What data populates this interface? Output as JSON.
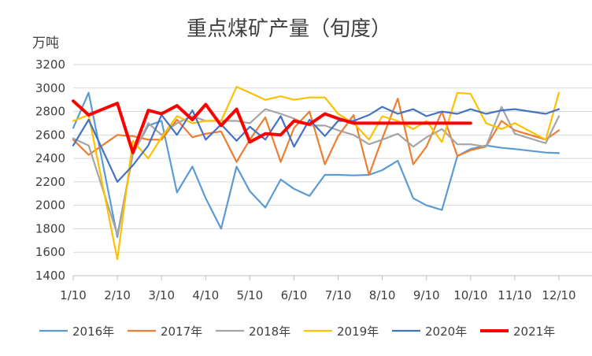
{
  "chart_data": {
    "type": "line",
    "title": "重点煤矿产量（旬度）",
    "ylabel": "万吨",
    "xlabel": "",
    "ylim": [
      1400,
      3200
    ],
    "yticks": [
      1400,
      1600,
      1800,
      2000,
      2200,
      2400,
      2600,
      2800,
      3000,
      3200
    ],
    "x_tick_labels": [
      "1/10",
      "2/10",
      "3/10",
      "4/10",
      "5/10",
      "6/10",
      "7/10",
      "8/10",
      "9/10",
      "10/10",
      "11/10",
      "12/10"
    ],
    "grid": "horizontal",
    "legend_position": "bottom",
    "x_unit": "month index (1 = 1/10)",
    "series": [
      {
        "name": "2016年",
        "color": "#5B9BD5",
        "x": [
          1.0,
          1.35,
          2.0,
          2.35,
          2.7,
          3.0,
          3.35,
          3.7,
          4.0,
          4.35,
          4.7,
          5.0,
          5.35,
          5.7,
          6.0,
          6.35,
          6.7,
          7.0,
          7.35,
          7.7,
          8.0,
          8.35,
          8.7,
          9.0,
          9.35,
          9.7,
          10.0,
          10.35,
          10.7,
          11.0,
          11.7,
          12.0
        ],
        "y": [
          2660,
          2960,
          1730,
          2440,
          2680,
          2720,
          2110,
          2330,
          2060,
          1800,
          2330,
          2120,
          1980,
          2220,
          2140,
          2080,
          2260,
          2260,
          2255,
          2260,
          2300,
          2380,
          2060,
          2000,
          1960,
          2420,
          2480,
          2510,
          2490,
          2480,
          2450,
          2445
        ]
      },
      {
        "name": "2017年",
        "color": "#ED7D31",
        "x": [
          1.0,
          1.35,
          2.0,
          2.35,
          2.7,
          3.0,
          3.35,
          3.7,
          4.0,
          4.35,
          4.7,
          5.0,
          5.35,
          5.7,
          6.0,
          6.35,
          6.7,
          7.0,
          7.35,
          7.7,
          8.0,
          8.35,
          8.7,
          9.0,
          9.35,
          9.7,
          10.0,
          10.35,
          10.7,
          11.0,
          11.7,
          12.0
        ],
        "y": [
          2560,
          2430,
          2600,
          2590,
          2560,
          2560,
          2730,
          2580,
          2610,
          2630,
          2370,
          2560,
          2750,
          2370,
          2660,
          2800,
          2350,
          2590,
          2770,
          2260,
          2570,
          2910,
          2350,
          2500,
          2800,
          2420,
          2470,
          2500,
          2720,
          2640,
          2560,
          2640
        ]
      },
      {
        "name": "2018年",
        "color": "#A5A5A5",
        "x": [
          1.0,
          1.35,
          2.0,
          2.35,
          2.7,
          3.0,
          3.35,
          3.7,
          4.0,
          4.35,
          4.7,
          5.0,
          5.35,
          5.7,
          6.0,
          6.35,
          6.7,
          7.0,
          7.35,
          7.7,
          8.0,
          8.35,
          8.7,
          9.0,
          9.35,
          9.7,
          10.0,
          10.35,
          10.7,
          11.0,
          11.7,
          12.0
        ],
        "y": [
          2570,
          2510,
          1750,
          2430,
          2700,
          2600,
          2700,
          2760,
          2720,
          2720,
          2720,
          2700,
          2820,
          2780,
          2740,
          2680,
          2680,
          2640,
          2600,
          2520,
          2560,
          2610,
          2500,
          2580,
          2650,
          2520,
          2520,
          2500,
          2840,
          2610,
          2530,
          2760
        ]
      },
      {
        "name": "2019年",
        "color": "#FFC000",
        "x": [
          1.0,
          1.35,
          2.0,
          2.35,
          2.7,
          3.0,
          3.35,
          3.7,
          4.0,
          4.35,
          4.7,
          5.0,
          5.35,
          5.7,
          6.0,
          6.35,
          6.7,
          7.0,
          7.35,
          7.7,
          8.0,
          8.35,
          8.7,
          9.0,
          9.35,
          9.7,
          10.0,
          10.35,
          10.7,
          11.0,
          11.7,
          12.0
        ],
        "y": [
          2720,
          2770,
          1540,
          2550,
          2400,
          2580,
          2760,
          2700,
          2720,
          2720,
          3010,
          2960,
          2900,
          2930,
          2900,
          2920,
          2920,
          2780,
          2700,
          2560,
          2760,
          2720,
          2650,
          2720,
          2540,
          2960,
          2950,
          2700,
          2650,
          2700,
          2560,
          2960
        ]
      },
      {
        "name": "2020年",
        "color": "#4472C4",
        "x": [
          1.0,
          1.35,
          2.0,
          2.35,
          2.7,
          3.0,
          3.35,
          3.7,
          4.0,
          4.35,
          4.7,
          5.0,
          5.35,
          5.7,
          6.0,
          6.35,
          6.7,
          7.0,
          7.35,
          7.7,
          8.0,
          8.35,
          8.7,
          9.0,
          9.35,
          9.7,
          10.0,
          10.35,
          10.7,
          11.0,
          11.7,
          12.0
        ],
        "y": [
          2510,
          2730,
          2200,
          2340,
          2510,
          2770,
          2600,
          2810,
          2560,
          2690,
          2550,
          2670,
          2560,
          2760,
          2500,
          2730,
          2590,
          2720,
          2720,
          2770,
          2840,
          2780,
          2820,
          2760,
          2800,
          2780,
          2820,
          2780,
          2810,
          2820,
          2780,
          2820
        ]
      },
      {
        "name": "2021年",
        "color": "#FF0000",
        "x": [
          1.0,
          1.35,
          2.0,
          2.35,
          2.7,
          3.0,
          3.35,
          3.7,
          4.0,
          4.35,
          4.7,
          5.0,
          5.35,
          5.7,
          6.0,
          6.35,
          6.7,
          7.0,
          7.35,
          7.7,
          8.0,
          8.35,
          8.7,
          9.0,
          9.35,
          9.7,
          10.0
        ],
        "y": [
          2890,
          2770,
          2870,
          2450,
          2810,
          2780,
          2850,
          2730,
          2860,
          2680,
          2820,
          2540,
          2610,
          2600,
          2720,
          2690,
          2780,
          2740,
          2700,
          2700,
          2700,
          2700,
          2700,
          2700,
          2700,
          2700,
          2700
        ]
      }
    ]
  }
}
